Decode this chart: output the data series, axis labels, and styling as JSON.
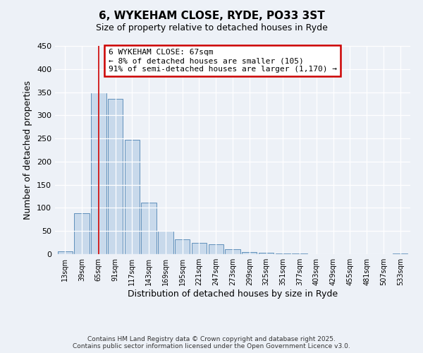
{
  "title": "6, WYKEHAM CLOSE, RYDE, PO33 3ST",
  "subtitle": "Size of property relative to detached houses in Ryde",
  "xlabel": "Distribution of detached houses by size in Ryde",
  "ylabel": "Number of detached properties",
  "bar_labels": [
    "13sqm",
    "39sqm",
    "65sqm",
    "91sqm",
    "117sqm",
    "143sqm",
    "169sqm",
    "195sqm",
    "221sqm",
    "247sqm",
    "273sqm",
    "299sqm",
    "325sqm",
    "351sqm",
    "377sqm",
    "403sqm",
    "429sqm",
    "455sqm",
    "481sqm",
    "507sqm",
    "533sqm"
  ],
  "bar_values": [
    6,
    89,
    350,
    335,
    247,
    112,
    50,
    32,
    25,
    21,
    10,
    5,
    3,
    2,
    1,
    0,
    0,
    0,
    0,
    0,
    2
  ],
  "bar_color": "#c8d9eb",
  "bar_edge_color": "#6090bb",
  "vline_x": 2,
  "vline_color": "#cc0000",
  "annotation_line1": "6 WYKEHAM CLOSE: 67sqm",
  "annotation_line2": "← 8% of detached houses are smaller (105)",
  "annotation_line3": "91% of semi-detached houses are larger (1,170) →",
  "annotation_box_color": "#cc0000",
  "ylim": [
    0,
    450
  ],
  "yticks": [
    0,
    50,
    100,
    150,
    200,
    250,
    300,
    350,
    400,
    450
  ],
  "footer1": "Contains HM Land Registry data © Crown copyright and database right 2025.",
  "footer2": "Contains public sector information licensed under the Open Government Licence v3.0.",
  "bg_color": "#edf1f7",
  "plot_bg_color": "#edf1f7"
}
